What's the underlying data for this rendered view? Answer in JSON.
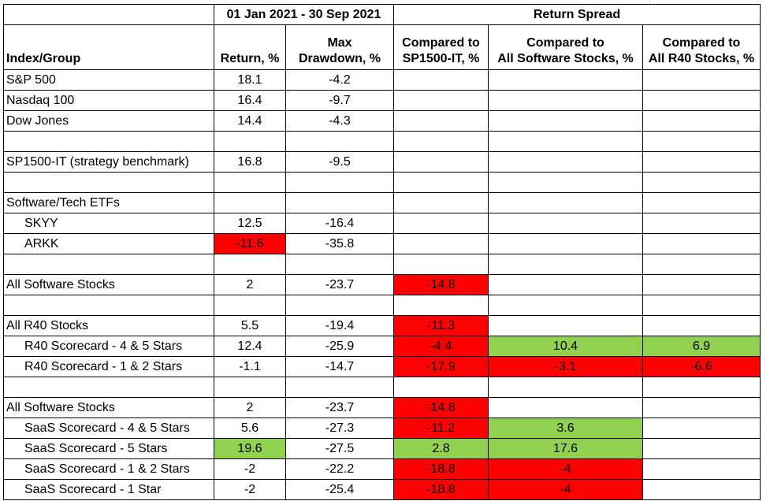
{
  "header": {
    "period": "01 Jan 2021 - 30 Sep 2021",
    "return_spread": "Return Spread",
    "col_index": "Index/Group",
    "col_return": "Return, %",
    "col_drawdown_1": "Max",
    "col_drawdown_2": "Drawdown, %",
    "col_sp_1": "Compared to",
    "col_sp_2": "SP1500-IT, %",
    "col_sw_1": "Compared to",
    "col_sw_2": "All Software Stocks, %",
    "col_r40_1": "Compared to",
    "col_r40_2": "All R40 Stocks, %"
  },
  "colors": {
    "negative": "#ff0000",
    "positive": "#92d050"
  },
  "rows": [
    {
      "label": "S&P 500",
      "indent": false,
      "ret": "18.1",
      "dd": "-4.2",
      "sp": "",
      "sw": "",
      "r40": ""
    },
    {
      "label": "Nasdaq 100",
      "indent": false,
      "ret": "16.4",
      "dd": "-9.7",
      "sp": "",
      "sw": "",
      "r40": ""
    },
    {
      "label": "Dow Jones",
      "indent": false,
      "ret": "14.4",
      "dd": "-4.3",
      "sp": "",
      "sw": "",
      "r40": ""
    },
    {
      "label": "",
      "indent": false,
      "ret": "",
      "dd": "",
      "sp": "",
      "sw": "",
      "r40": ""
    },
    {
      "label": "SP1500-IT (strategy benchmark)",
      "indent": false,
      "ret": "16.8",
      "dd": "-9.5",
      "sp": "",
      "sw": "",
      "r40": ""
    },
    {
      "label": "",
      "indent": false,
      "ret": "",
      "dd": "",
      "sp": "",
      "sw": "",
      "r40": ""
    },
    {
      "label": "Software/Tech ETFs",
      "indent": false,
      "ret": "",
      "dd": "",
      "sp": "",
      "sw": "",
      "r40": ""
    },
    {
      "label": "SKYY",
      "indent": true,
      "ret": "12.5",
      "dd": "-16.4",
      "sp": "",
      "sw": "",
      "r40": ""
    },
    {
      "label": "ARKK",
      "indent": true,
      "ret": "-11.6",
      "ret_fill": "red",
      "dd": "-35.8",
      "sp": "",
      "sw": "",
      "r40": ""
    },
    {
      "label": "",
      "indent": false,
      "ret": "",
      "dd": "",
      "sp": "",
      "sw": "",
      "r40": ""
    },
    {
      "label": "All Software Stocks",
      "indent": false,
      "ret": "2",
      "dd": "-23.7",
      "sp": "-14.8",
      "sp_fill": "red",
      "sw": "",
      "r40": ""
    },
    {
      "label": "",
      "indent": false,
      "ret": "",
      "dd": "",
      "sp": "",
      "sw": "",
      "r40": ""
    },
    {
      "label": "All R40 Stocks",
      "indent": false,
      "ret": "5.5",
      "dd": "-19.4",
      "sp": "-11.3",
      "sp_fill": "red",
      "sw": "",
      "r40": ""
    },
    {
      "label": "R40 Scorecard - 4 & 5 Stars",
      "indent": true,
      "ret": "12.4",
      "dd": "-25.9",
      "sp": "-4.4",
      "sp_fill": "red",
      "sw": "10.4",
      "sw_fill": "green",
      "r40": "6.9",
      "r40_fill": "green"
    },
    {
      "label": "R40 Scorecard - 1 & 2 Stars",
      "indent": true,
      "ret": "-1.1",
      "dd": "-14.7",
      "sp": "-17.9",
      "sp_fill": "red",
      "sw": "-3.1",
      "sw_fill": "red",
      "r40": "-6.6",
      "r40_fill": "red"
    },
    {
      "label": "",
      "indent": false,
      "ret": "",
      "dd": "",
      "sp": "",
      "sw": "",
      "r40": ""
    },
    {
      "label": "All Software Stocks",
      "indent": false,
      "ret": "2",
      "dd": "-23.7",
      "sp": "-14.8",
      "sp_fill": "red",
      "sw": "",
      "r40": ""
    },
    {
      "label": "SaaS Scorecard - 4 & 5 Stars",
      "indent": true,
      "ret": "5.6",
      "dd": "-27.3",
      "sp": "-11.2",
      "sp_fill": "red",
      "sw": "3.6",
      "sw_fill": "green",
      "r40": ""
    },
    {
      "label": "SaaS Scorecard - 5 Stars",
      "indent": true,
      "ret": "19.6",
      "ret_fill": "green",
      "dd": "-27.5",
      "sp": "2.8",
      "sp_fill": "green",
      "sw": "17.6",
      "sw_fill": "green",
      "r40": ""
    },
    {
      "label": "SaaS Scorecard - 1 & 2 Stars",
      "indent": true,
      "ret": "-2",
      "dd": "-22.2",
      "sp": "-18.8",
      "sp_fill": "red",
      "sw": "-4",
      "sw_fill": "red",
      "r40": ""
    },
    {
      "label": "SaaS Scorecard - 1 Star",
      "indent": true,
      "ret": "-2",
      "dd": "-25.4",
      "sp": "-18.8",
      "sp_fill": "red",
      "sw": "-4",
      "sw_fill": "red",
      "r40": ""
    }
  ]
}
